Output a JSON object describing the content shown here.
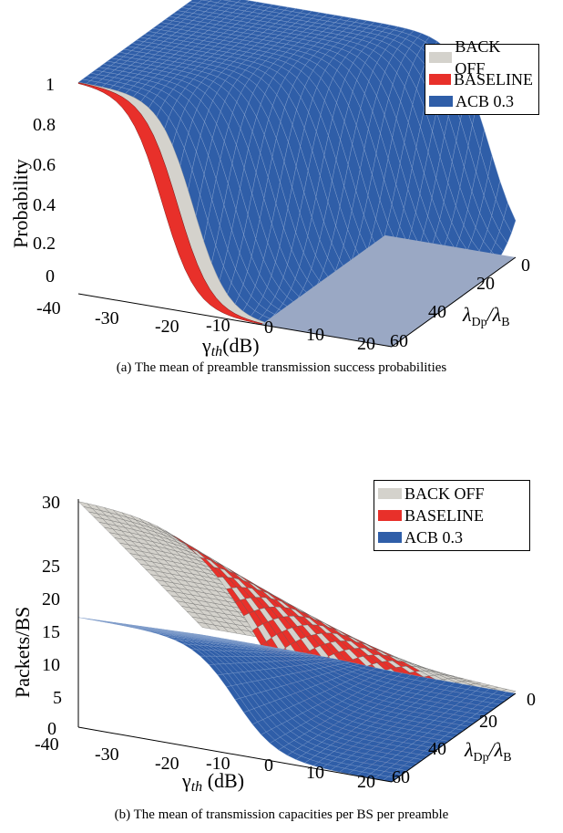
{
  "figure": {
    "panel_a": {
      "caption": "(a) The mean of preamble transmission success probabilities",
      "y_label": "Probability",
      "x_label_symbol": "γ",
      "x_label_sub": "th",
      "x_label_unit": "(dB)",
      "z_label_text": "λDp/λB",
      "x_ticks": [
        "-40",
        "-30",
        "-20",
        "-10",
        "0",
        "10",
        "20"
      ],
      "y_ticks": [
        "0",
        "0.2",
        "0.4",
        "0.6",
        "0.8",
        "1"
      ],
      "z_ticks": [
        "0",
        "20",
        "40",
        "60"
      ],
      "legend": [
        {
          "label": "BACK OFF",
          "color": "#d4d2cc"
        },
        {
          "label": "BASELINE",
          "color": "#e8302a"
        },
        {
          "label": "ACB 0.3",
          "color": "#2f5ea8"
        }
      ]
    },
    "panel_b": {
      "caption": "(b) The mean of transmission capacities per BS per preamble",
      "y_label": "Packets/BS",
      "x_label_symbol": "γ",
      "x_label_sub": "th",
      "x_label_unit": " (dB)",
      "z_label_text": "λDp/λB",
      "x_ticks": [
        "-40",
        "-30",
        "-20",
        "-10",
        "0",
        "10",
        "20"
      ],
      "y_ticks": [
        "0",
        "5",
        "10",
        "15",
        "20",
        "25",
        "30"
      ],
      "z_ticks": [
        "0",
        "20",
        "40",
        "60"
      ],
      "legend": [
        {
          "label": "BACK OFF",
          "color": "#d4d2cc"
        },
        {
          "label": "BASELINE",
          "color": "#e8302a"
        },
        {
          "label": "ACB 0.3",
          "color": "#2f5ea8"
        }
      ]
    }
  },
  "chart_data": [
    {
      "type": "surface",
      "xlabel": "γth(dB)",
      "ylabel": "Probability",
      "zlabel": "λDp/λB",
      "xlim": [
        -40,
        20
      ],
      "ylim": [
        0,
        1
      ],
      "zlim": [
        0,
        60
      ],
      "series": [
        {
          "name": "BACK OFF",
          "color": "#d4d2cc",
          "x": [
            -40,
            -30,
            -20,
            -10,
            0,
            10,
            20
          ],
          "y_at_lambda60": [
            1.0,
            0.98,
            0.5,
            0.02,
            0.0,
            0.0,
            0.0
          ],
          "y_at_lambda0": [
            1.0,
            1.0,
            1.0,
            1.0,
            1.0,
            0.95,
            0.0
          ]
        },
        {
          "name": "BASELINE",
          "color": "#e8302a",
          "x": [
            -40,
            -30,
            -20,
            -10,
            0,
            10,
            20
          ],
          "y_at_lambda60": [
            1.0,
            0.97,
            0.42,
            0.01,
            0.0,
            0.0,
            0.0
          ],
          "y_at_lambda0": [
            1.0,
            1.0,
            1.0,
            1.0,
            1.0,
            0.95,
            0.0
          ]
        },
        {
          "name": "ACB 0.3",
          "color": "#2f5ea8",
          "x": [
            -40,
            -30,
            -20,
            -10,
            0,
            10,
            20
          ],
          "y_at_lambda60": [
            1.0,
            0.99,
            0.7,
            0.05,
            0.0,
            0.0,
            0.0
          ],
          "y_at_lambda0": [
            1.0,
            1.0,
            1.0,
            1.0,
            1.0,
            0.97,
            0.0
          ]
        }
      ]
    },
    {
      "type": "surface",
      "xlabel": "γth (dB)",
      "ylabel": "Packets/BS",
      "zlabel": "λDp/λB",
      "xlim": [
        -40,
        20
      ],
      "ylim": [
        0,
        30
      ],
      "zlim": [
        0,
        60
      ],
      "series": [
        {
          "name": "BACK OFF",
          "color": "#d4d2cc",
          "x": [
            -40,
            -30,
            -20,
            -10,
            0,
            10,
            20
          ],
          "y_at_lambda60": [
            28.5,
            24,
            18,
            10,
            3,
            0.5,
            0
          ],
          "y_at_lambda0": [
            0,
            0,
            0,
            0,
            0,
            0,
            0
          ]
        },
        {
          "name": "BASELINE",
          "color": "#e8302a",
          "x": [
            -40,
            -30,
            -20,
            -10,
            0,
            10,
            20
          ],
          "y_at_lambda60": [
            28.5,
            26,
            21,
            13,
            5,
            1,
            0
          ],
          "y_at_lambda0": [
            0,
            0,
            0,
            0,
            0,
            0,
            0
          ]
        },
        {
          "name": "ACB 0.3",
          "color": "#2f5ea8",
          "x": [
            -40,
            -30,
            -20,
            -10,
            0,
            10,
            20
          ],
          "y_at_lambda60": [
            14,
            13,
            11,
            4,
            1,
            0.2,
            0
          ],
          "y_at_lambda0": [
            0,
            0,
            0,
            0,
            0,
            0,
            0
          ]
        }
      ]
    }
  ]
}
